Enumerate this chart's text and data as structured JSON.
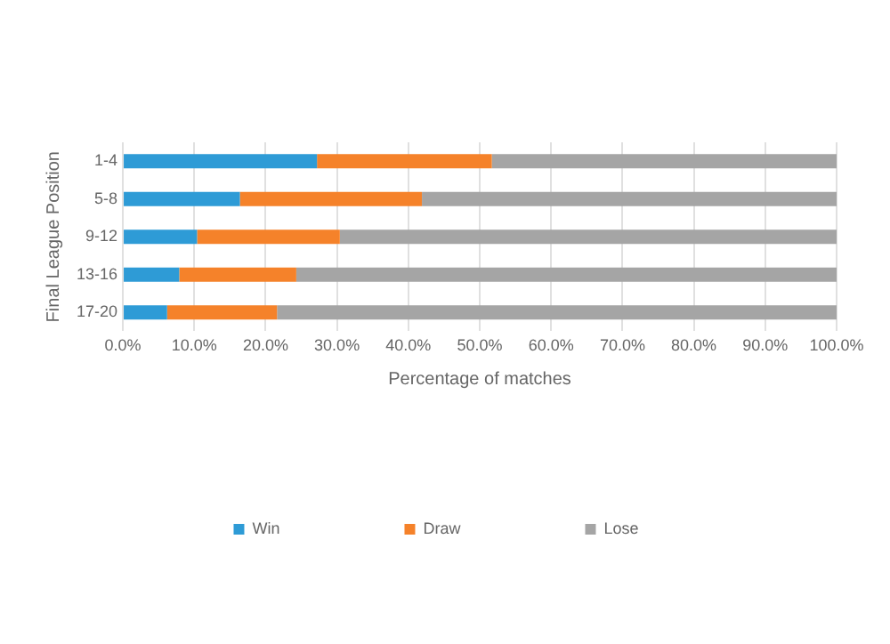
{
  "chart_data": {
    "type": "bar",
    "orientation": "horizontal",
    "stacked": true,
    "xlabel": "Percentage of matches",
    "ylabel": "Final League Position",
    "categories": [
      "1-4",
      "5-8",
      "9-12",
      "13-16",
      "17-20"
    ],
    "series": [
      {
        "name": "Win",
        "color": "#2e9bd6",
        "values": [
          27.2,
          16.4,
          10.4,
          7.9,
          6.2
        ]
      },
      {
        "name": "Draw",
        "color": "#f5822a",
        "values": [
          24.5,
          25.5,
          20.0,
          16.4,
          15.4
        ]
      },
      {
        "name": "Lose",
        "color": "#a5a5a5",
        "values": [
          48.3,
          58.1,
          69.6,
          75.7,
          78.4
        ]
      }
    ],
    "xlim": [
      0,
      100
    ],
    "xticks": [
      {
        "value": 0,
        "label": "0.0%"
      },
      {
        "value": 10,
        "label": "10.0%"
      },
      {
        "value": 20,
        "label": "20.0%"
      },
      {
        "value": 30,
        "label": "30.0%"
      },
      {
        "value": 40,
        "label": "40.0%"
      },
      {
        "value": 50,
        "label": "50.0%"
      },
      {
        "value": 60,
        "label": "60.0%"
      },
      {
        "value": 70,
        "label": "70.0%"
      },
      {
        "value": 80,
        "label": "80.0%"
      },
      {
        "value": 90,
        "label": "90.0%"
      },
      {
        "value": 100,
        "label": "100.0%"
      }
    ],
    "grid": "x",
    "legend": "bottom"
  }
}
